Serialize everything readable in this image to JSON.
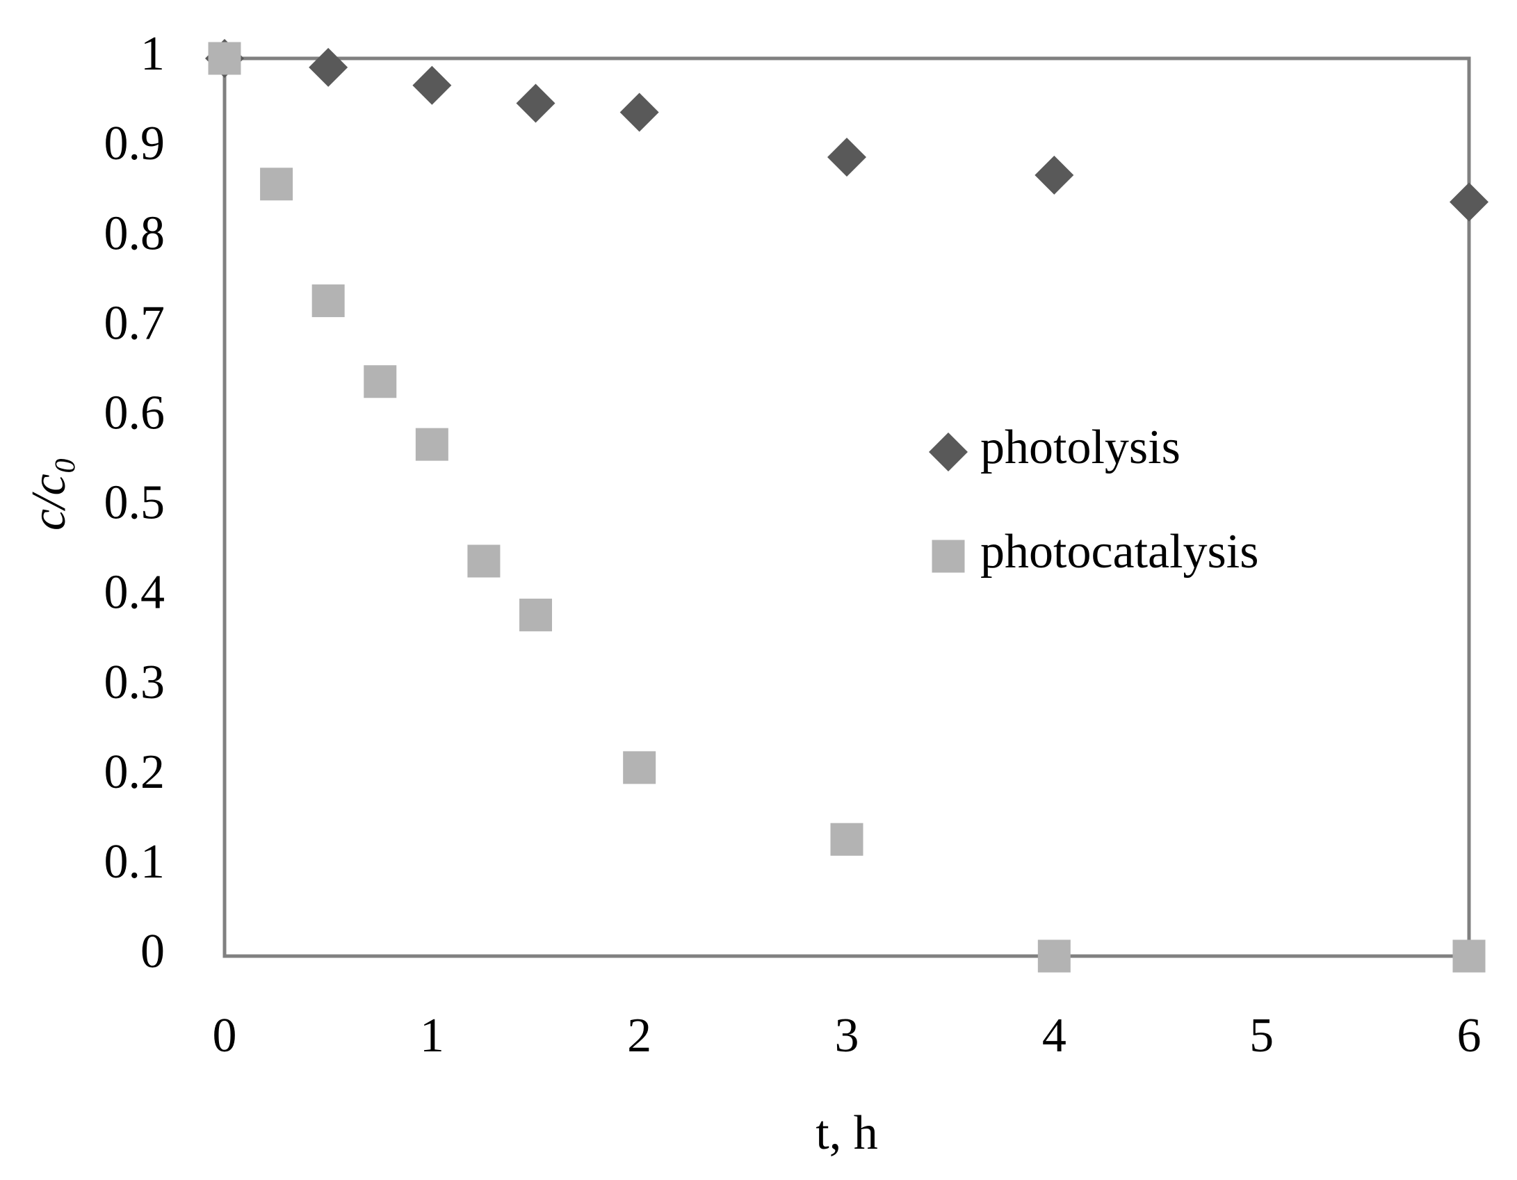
{
  "chart_data": {
    "type": "scatter",
    "xlabel": "t, h",
    "ylabel": "c/c₀",
    "xlim": [
      0,
      6
    ],
    "xticks": [
      0,
      1,
      2,
      3,
      4,
      5,
      6
    ],
    "ylim": [
      0,
      1
    ],
    "yticks": [
      0,
      0.1,
      0.2,
      0.3,
      0.4,
      0.5,
      0.6,
      0.7,
      0.8,
      0.9,
      1
    ],
    "grid": false,
    "legend": "right",
    "series": [
      {
        "name": "photolysis",
        "color": "#595959",
        "marker": "diamond",
        "x": [
          0,
          0.5,
          1,
          1.5,
          2,
          3,
          4,
          6
        ],
        "values": [
          1,
          0.99,
          0.97,
          0.95,
          0.94,
          0.89,
          0.87,
          0.84
        ]
      },
      {
        "name": "photocatalysis",
        "color": "#b3b3b3",
        "marker": "square",
        "x": [
          0,
          0.25,
          0.5,
          0.75,
          1,
          1.25,
          1.5,
          2,
          3,
          4,
          6
        ],
        "values": [
          1,
          0.86,
          0.73,
          0.64,
          0.57,
          0.44,
          0.38,
          0.21,
          0.13,
          0,
          0
        ]
      }
    ]
  }
}
